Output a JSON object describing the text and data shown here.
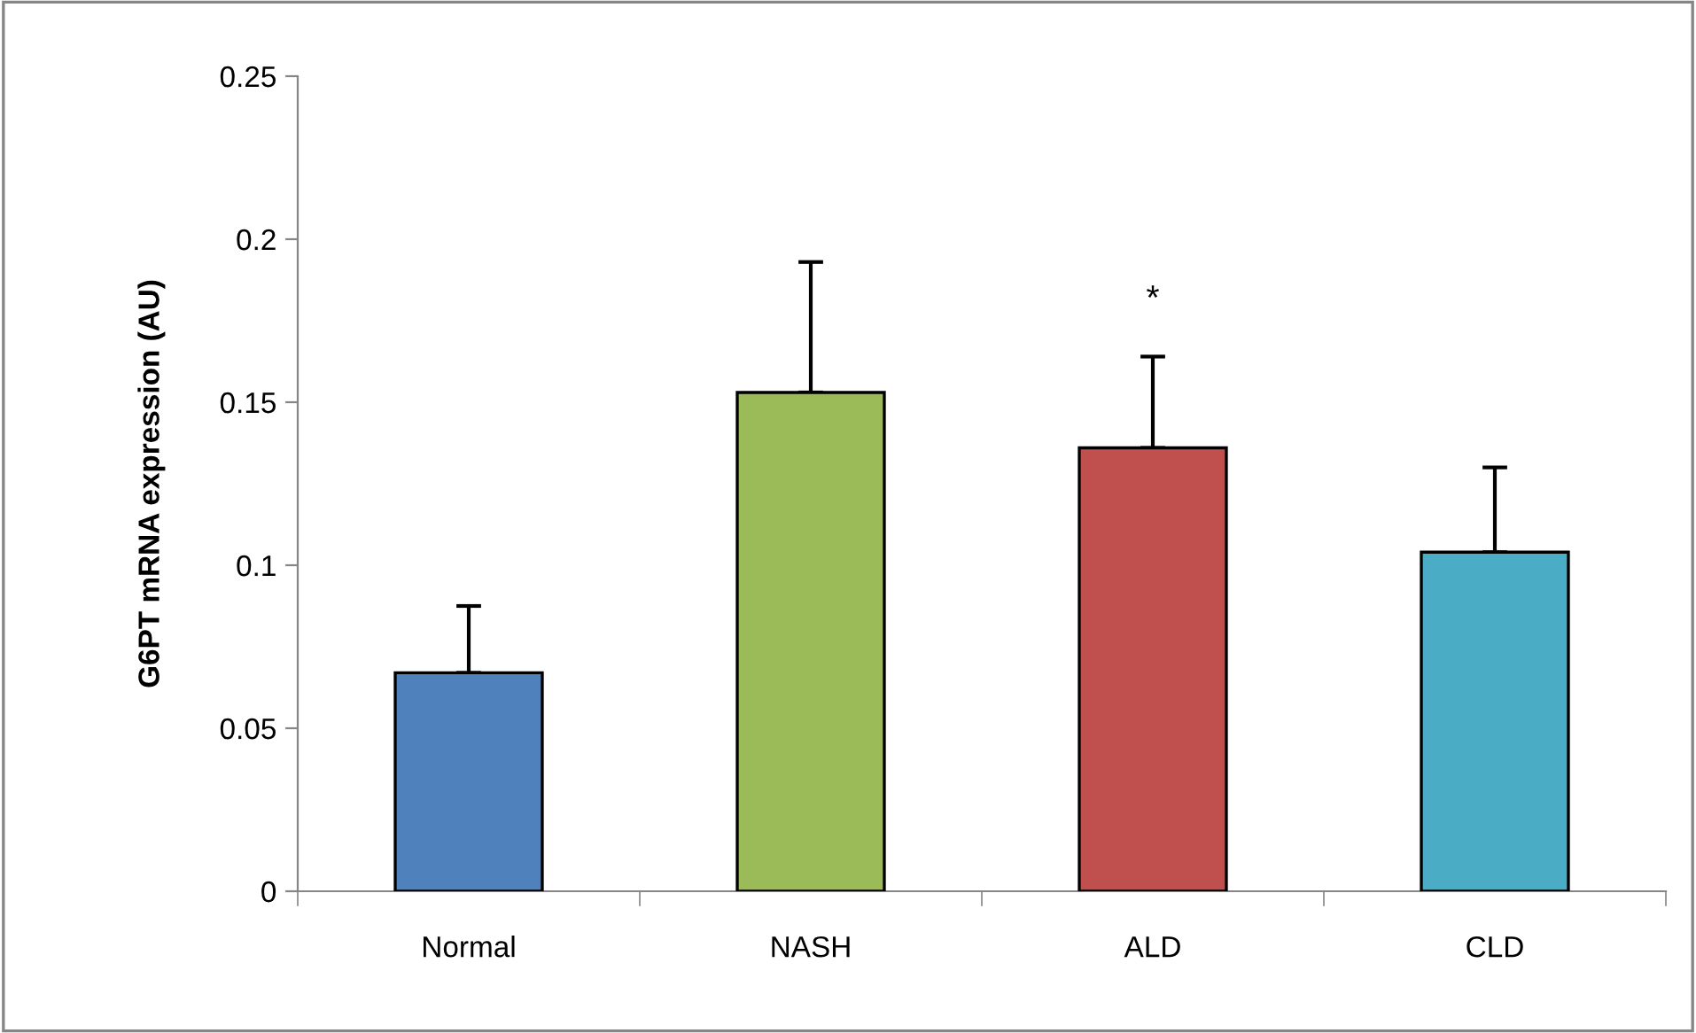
{
  "chart_data": {
    "type": "bar",
    "ylabel": "G6PT mRNA expression (AU)",
    "categories": [
      "Normal",
      "NASH",
      "ALD",
      "CLD"
    ],
    "values": [
      0.067,
      0.153,
      0.136,
      0.104
    ],
    "colors": [
      "#4f81bd",
      "#9bbb59",
      "#c0504d",
      "#4bacc6"
    ],
    "errors": [
      [
        0.067,
        0.0875
      ],
      [
        0.153,
        0.193
      ],
      [
        0.136,
        0.164
      ],
      [
        0.104,
        0.13
      ]
    ],
    "ylim": [
      0,
      0.25
    ],
    "yticks": [
      0,
      0.05,
      0.1,
      0.15,
      0.2,
      0.25
    ],
    "grid": false,
    "legend": false,
    "annotations": [
      "*"
    ]
  }
}
